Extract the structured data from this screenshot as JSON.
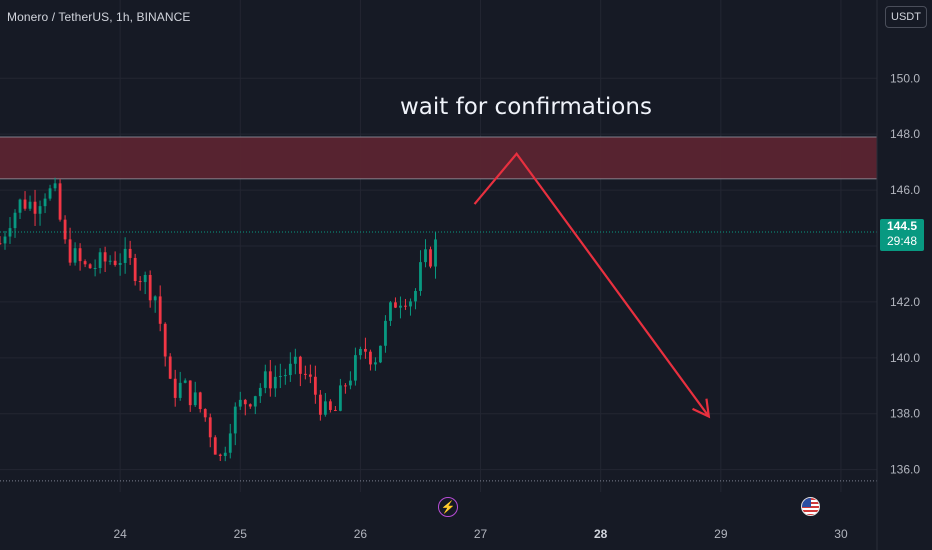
{
  "header": {
    "symbol_title": "Monero / TetherUS, 1h, BINANCE",
    "currency_button": "USDT"
  },
  "last_price": {
    "value": "144.5",
    "countdown": "29:48",
    "color": "#089981"
  },
  "annotation_text": "wait for confirmations",
  "colors": {
    "background": "#161a25",
    "up": "#089981",
    "down": "#f23645",
    "zone": "#5b2430",
    "arrow": "#e8303f",
    "grid": "#232632"
  },
  "bottom_icons": [
    "flash-icon",
    "us-flag-icon"
  ],
  "chart_data": {
    "type": "candlestick",
    "symbol": "XMR/USDT",
    "interval": "1h",
    "exchange": "BINANCE",
    "x_axis": {
      "tick_labels": [
        "24",
        "25",
        "26",
        "27",
        "28",
        "29",
        "30"
      ],
      "bold_ticks": [
        "28"
      ]
    },
    "y_axis": {
      "tick_labels": [
        "136.0",
        "138.0",
        "140.0",
        "142.0",
        "144.0",
        "146.0",
        "148.0",
        "150.0"
      ],
      "range": [
        135.2,
        152.8
      ]
    },
    "x_range_days": [
      23.0,
      30.3
    ],
    "grid": true,
    "resistance_zone": {
      "from": 146.4,
      "to": 147.9
    },
    "current_price_line": 144.5,
    "dotted_low_line": 135.6,
    "projection_arrow": {
      "points": [
        [
          26.95,
          145.5
        ],
        [
          27.3,
          147.3
        ],
        [
          28.9,
          137.9
        ]
      ],
      "direction": "down"
    },
    "candle_anchors": [
      [
        23.0,
        144.1
      ],
      [
        23.08,
        145.0
      ],
      [
        23.18,
        145.6
      ],
      [
        23.28,
        145.5
      ],
      [
        23.38,
        146.0
      ],
      [
        23.46,
        145.8
      ],
      [
        23.54,
        144.0
      ],
      [
        23.62,
        143.6
      ],
      [
        23.7,
        143.2
      ],
      [
        23.8,
        143.3
      ],
      [
        23.9,
        143.5
      ],
      [
        24.0,
        143.6
      ],
      [
        24.1,
        143.3
      ],
      [
        24.2,
        142.8
      ],
      [
        24.3,
        142.2
      ],
      [
        24.36,
        140.5
      ],
      [
        24.42,
        138.8
      ],
      [
        24.52,
        139.0
      ],
      [
        24.62,
        138.5
      ],
      [
        24.72,
        137.8
      ],
      [
        24.78,
        137.0
      ],
      [
        24.84,
        136.3
      ],
      [
        24.92,
        137.8
      ],
      [
        25.0,
        138.3
      ],
      [
        25.1,
        138.7
      ],
      [
        25.22,
        139.2
      ],
      [
        25.34,
        139.4
      ],
      [
        25.46,
        139.6
      ],
      [
        25.56,
        139.3
      ],
      [
        25.64,
        138.6
      ],
      [
        25.72,
        137.9
      ],
      [
        25.8,
        138.1
      ],
      [
        25.86,
        139.0
      ],
      [
        25.94,
        139.6
      ],
      [
        26.04,
        140.3
      ],
      [
        26.12,
        140.0
      ],
      [
        26.2,
        141.0
      ],
      [
        26.28,
        142.0
      ],
      [
        26.36,
        142.3
      ],
      [
        26.44,
        142.1
      ],
      [
        26.52,
        143.4
      ],
      [
        26.6,
        143.7
      ],
      [
        26.66,
        144.5
      ]
    ]
  }
}
